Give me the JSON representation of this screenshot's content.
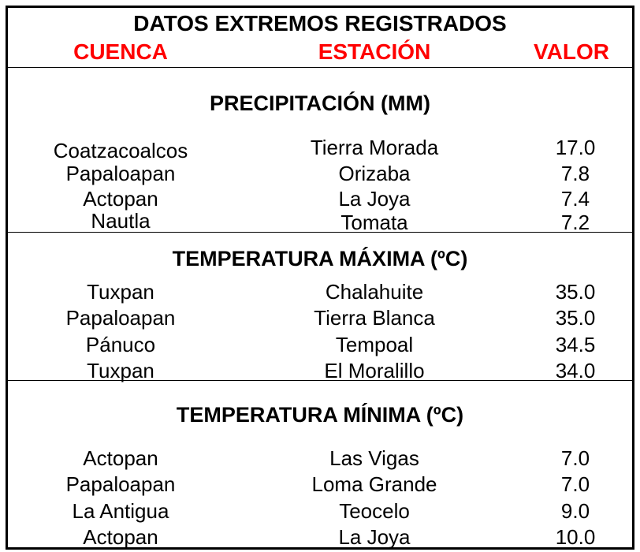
{
  "title": "DATOS EXTREMOS REGISTRADOS",
  "columns": {
    "cuenca": "CUENCA",
    "estacion": "ESTACIÓN",
    "valor": "VALOR"
  },
  "sections": [
    {
      "title": "PRECIPITACIÓN (MM)",
      "rows": [
        {
          "cuenca": "Coatzacoalcos",
          "estacion": "Tierra Morada",
          "valor": "17.0"
        },
        {
          "cuenca": "Papaloapan",
          "estacion": "Orizaba",
          "valor": "7.8"
        },
        {
          "cuenca": "Actopan",
          "estacion": "La Joya",
          "valor": "7.4"
        },
        {
          "cuenca": "Nautla",
          "estacion": "Tomata",
          "valor": "7.2"
        }
      ]
    },
    {
      "title": "TEMPERATURA MÁXIMA (ºC)",
      "rows": [
        {
          "cuenca": "Tuxpan",
          "estacion": "Chalahuite",
          "valor": "35.0"
        },
        {
          "cuenca": "Papaloapan",
          "estacion": "Tierra Blanca",
          "valor": "35.0"
        },
        {
          "cuenca": "Pánuco",
          "estacion": "Tempoal",
          "valor": "34.5"
        },
        {
          "cuenca": "Tuxpan",
          "estacion": "El Moralillo",
          "valor": "34.0"
        }
      ]
    },
    {
      "title": "TEMPERATURA MÍNIMA (ºC)",
      "rows": [
        {
          "cuenca": "Actopan",
          "estacion": "Las Vigas",
          "valor": "7.0"
        },
        {
          "cuenca": "Papaloapan",
          "estacion": "Loma Grande",
          "valor": "7.0"
        },
        {
          "cuenca": "La Antigua",
          "estacion": "Teocelo",
          "valor": "9.0"
        },
        {
          "cuenca": "Actopan",
          "estacion": "La Joya",
          "valor": "10.0"
        }
      ]
    }
  ]
}
